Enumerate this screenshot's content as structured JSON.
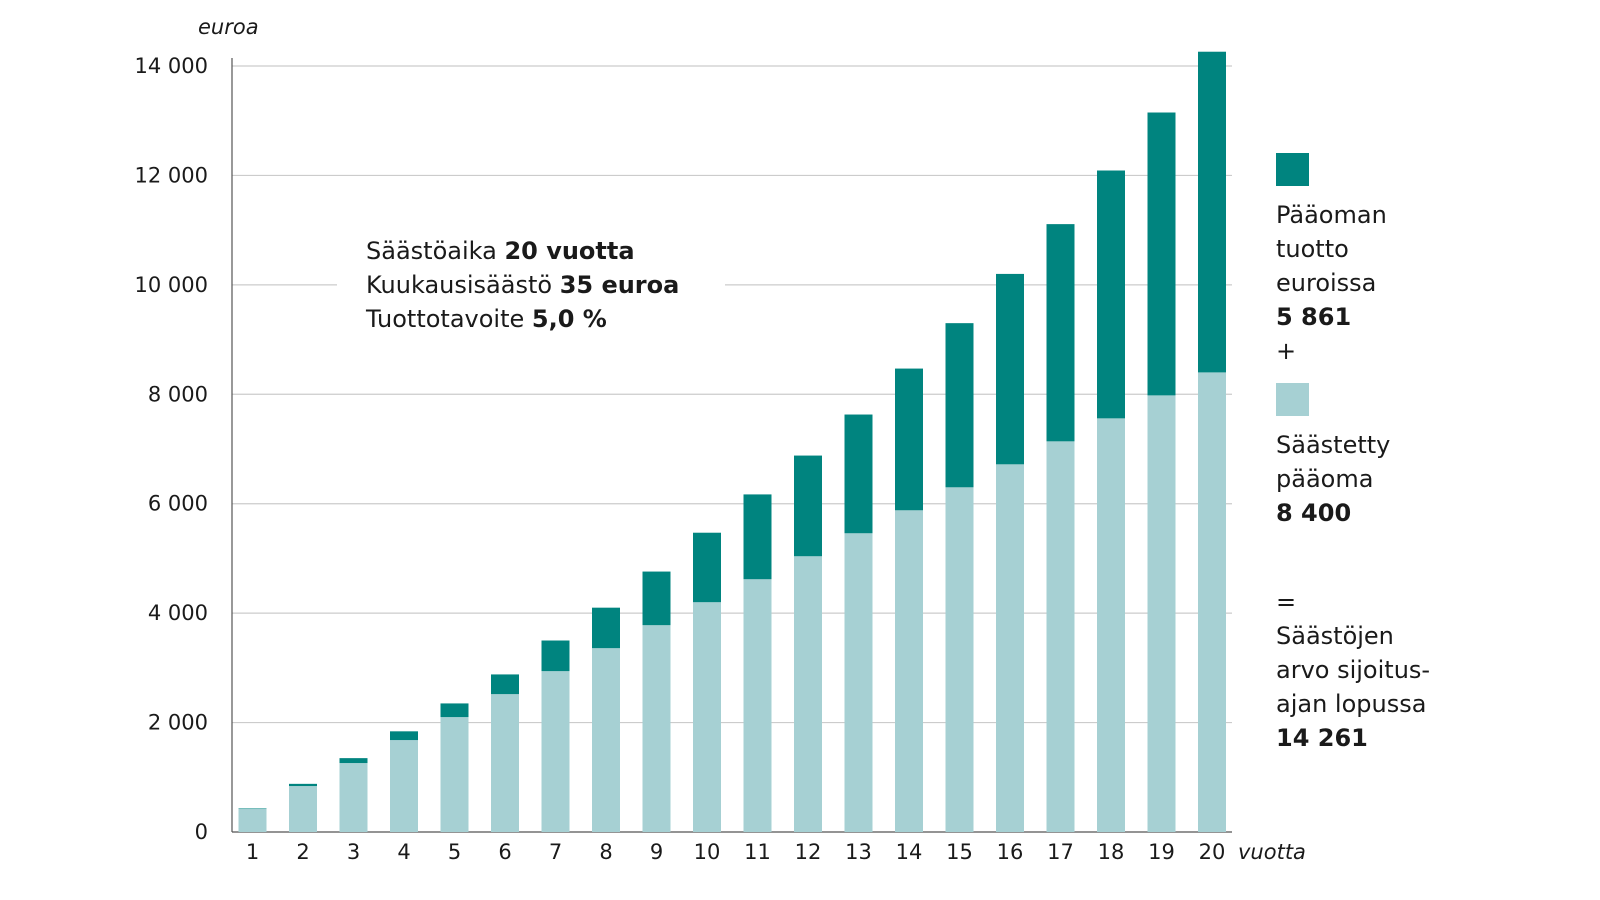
{
  "colors": {
    "earnings": "#00847f",
    "principal": "#a6d0d3",
    "grid": "#cccccc",
    "axis": "#555555"
  },
  "y_unit": "euroa",
  "x_unit": "vuotta",
  "annotation": {
    "line1_label": "Säästöaika ",
    "line1_value": "20 vuotta",
    "line2_label": "Kuukausisäästö ",
    "line2_value": "35 euroa",
    "line3_label": "Tuottotavoite ",
    "line3_value": "5,0 %"
  },
  "legend": {
    "earnings_line1": "Pääoman",
    "earnings_line2": "tuotto",
    "earnings_line3": "euroissa",
    "earnings_value": "5 861",
    "plus": "+",
    "principal_line1": "Säästetty",
    "principal_line2": "pääoma",
    "principal_value": "8 400",
    "equals": "=",
    "total_line1": "Säästöjen",
    "total_line2": "arvo sijoitus-",
    "total_line3": "ajan lopussa",
    "total_value": "14 261"
  },
  "chart_data": {
    "type": "bar",
    "stacked": true,
    "categories": [
      "1",
      "2",
      "3",
      "4",
      "5",
      "6",
      "7",
      "8",
      "9",
      "10",
      "11",
      "12",
      "13",
      "14",
      "15",
      "16",
      "17",
      "18",
      "19",
      "20"
    ],
    "series": [
      {
        "name": "Säästetty pääoma",
        "values": [
          420,
          840,
          1260,
          1680,
          2100,
          2520,
          2940,
          3360,
          3780,
          4200,
          4620,
          5040,
          5460,
          5880,
          6300,
          6720,
          7140,
          7560,
          7980,
          8400
        ]
      },
      {
        "name": "Pääoman tuotto euroissa",
        "values": [
          10,
          40,
          90,
          160,
          250,
          360,
          560,
          740,
          980,
          1270,
          1550,
          1840,
          2170,
          2590,
          3000,
          3480,
          3970,
          4530,
          5170,
          5861
        ]
      }
    ],
    "ylim": [
      0,
      14000
    ],
    "yticks": [
      0,
      2000,
      4000,
      6000,
      8000,
      10000,
      12000,
      14000
    ],
    "ytick_labels": [
      "0",
      "2 000",
      "4 000",
      "6 000",
      "8 000",
      "10 000",
      "12 000",
      "14 000"
    ],
    "grid": true,
    "legend_position": "right"
  }
}
